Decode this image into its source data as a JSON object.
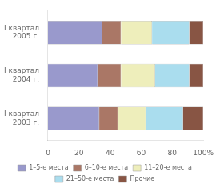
{
  "chart_data": {
    "type": "bar",
    "orientation": "horizontal",
    "stacked": true,
    "categories": [
      "I квартал\n2003 г.",
      "I квартал\n2004 г.",
      "I квартал\n2005 г."
    ],
    "series": [
      {
        "name": "1–5-е места",
        "color": "#9999CC",
        "values": [
          33,
          32,
          35
        ]
      },
      {
        "name": "6–10-е места",
        "color": "#AA7766",
        "values": [
          12,
          15,
          12
        ]
      },
      {
        "name": "11–20-е места",
        "color": "#EEEEBB",
        "values": [
          18,
          22,
          20
        ]
      },
      {
        "name": "21–50-е места",
        "color": "#AADDEE",
        "values": [
          24,
          22,
          24
        ]
      },
      {
        "name": "Прочие",
        "color": "#885544",
        "values": [
          13,
          9,
          9
        ]
      }
    ],
    "xlim": [
      0,
      100
    ],
    "xticks": [
      0,
      20,
      40,
      60,
      80,
      {
        "value": 100,
        "label": "100%"
      }
    ],
    "grid": false,
    "legend": "bottom"
  }
}
